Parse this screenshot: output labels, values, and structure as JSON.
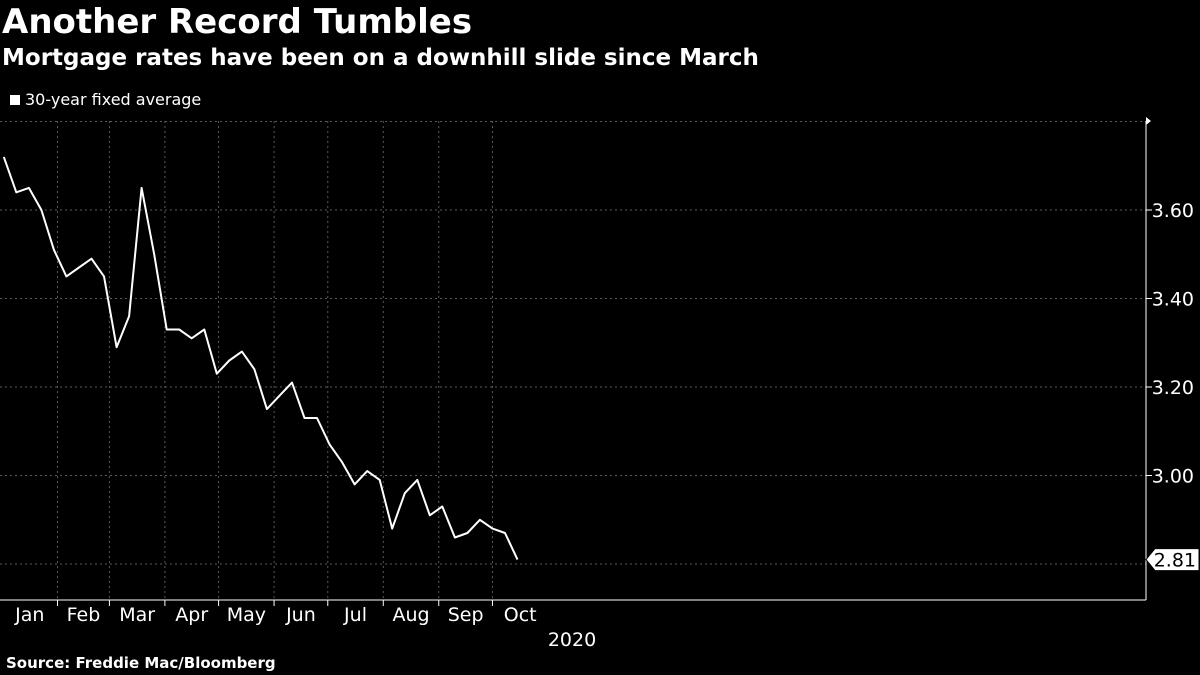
{
  "header": {
    "title": "Another Record Tumbles",
    "subtitle": "Mortgage rates have been on a downhill slide since March"
  },
  "footer": {
    "source": "Source: Freddie Mac/Bloomberg"
  },
  "colors": {
    "background": "#000000",
    "line": "#ffffff",
    "grid": "#5a5a5a",
    "text": "#ffffff"
  },
  "chart_data": {
    "type": "line",
    "title": "Another Record Tumbles",
    "subtitle": "Mortgage rates have been on a downhill slide since March",
    "x_axis": {
      "month_labels": [
        "Jan",
        "Feb",
        "Mar",
        "Apr",
        "May",
        "Jun",
        "Jul",
        "Aug",
        "Sep",
        "Oct"
      ],
      "year_label": "2020",
      "range": [
        "2020-01-01",
        "2020-10-31"
      ]
    },
    "y_axis": {
      "position": "right",
      "ticks": [
        "3.00",
        "3.20",
        "3.40",
        "3.60"
      ],
      "ylim": [
        2.73,
        3.83
      ]
    },
    "grid": true,
    "legend": {
      "placement": "top-left"
    },
    "last_value_label": "2.81",
    "series": [
      {
        "name": "30-year fixed average",
        "x": [
          "2020-01-02",
          "2020-01-09",
          "2020-01-16",
          "2020-01-23",
          "2020-01-30",
          "2020-02-06",
          "2020-02-13",
          "2020-02-20",
          "2020-02-27",
          "2020-03-05",
          "2020-03-12",
          "2020-03-19",
          "2020-03-26",
          "2020-04-02",
          "2020-04-09",
          "2020-04-16",
          "2020-04-23",
          "2020-04-30",
          "2020-05-07",
          "2020-05-14",
          "2020-05-21",
          "2020-05-28",
          "2020-06-04",
          "2020-06-11",
          "2020-06-18",
          "2020-06-25",
          "2020-07-02",
          "2020-07-09",
          "2020-07-16",
          "2020-07-23",
          "2020-07-30",
          "2020-08-06",
          "2020-08-13",
          "2020-08-20",
          "2020-08-27",
          "2020-09-03",
          "2020-09-10",
          "2020-09-17",
          "2020-09-24",
          "2020-10-01",
          "2020-10-08",
          "2020-10-15"
        ],
        "values": [
          3.72,
          3.64,
          3.65,
          3.6,
          3.51,
          3.45,
          3.47,
          3.49,
          3.45,
          3.29,
          3.36,
          3.65,
          3.5,
          3.33,
          3.33,
          3.31,
          3.33,
          3.23,
          3.26,
          3.28,
          3.24,
          3.15,
          3.18,
          3.21,
          3.13,
          3.13,
          3.07,
          3.03,
          2.98,
          3.01,
          2.99,
          2.88,
          2.96,
          2.99,
          2.91,
          2.93,
          2.86,
          2.87,
          2.9,
          2.88,
          2.87,
          2.81
        ]
      }
    ]
  }
}
